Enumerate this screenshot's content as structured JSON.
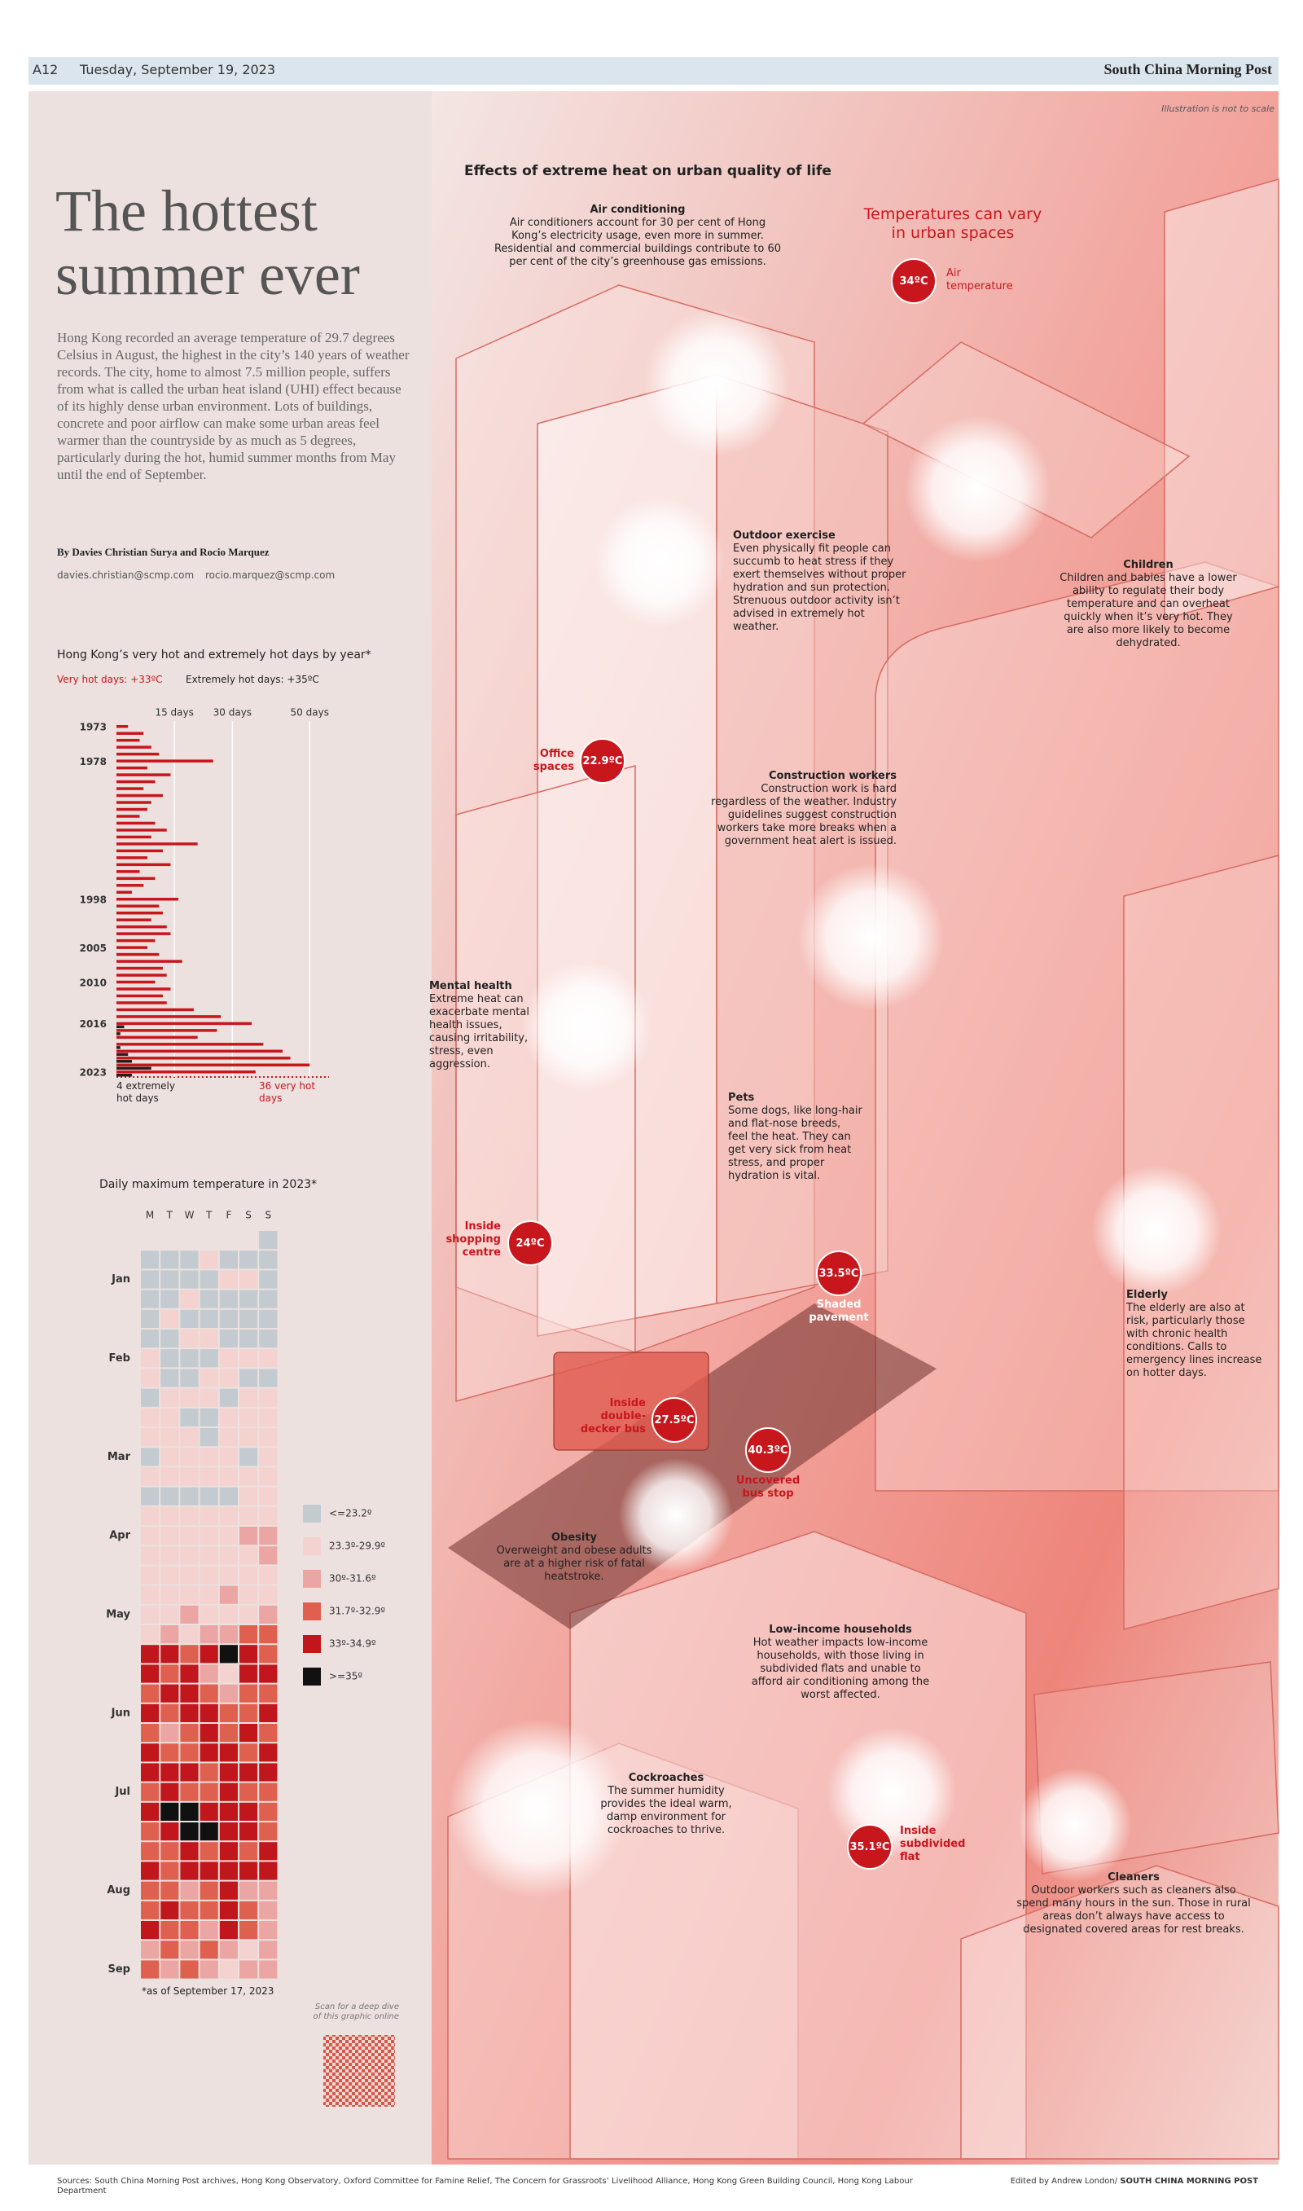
{
  "header": {
    "page": "A12",
    "date": "Tuesday, September 19, 2023",
    "masthead": "South China Morning Post"
  },
  "note": "Illustration is not to scale",
  "article": {
    "title": "The hottest summer ever",
    "intro": "Hong Kong recorded an average temperature of 29.7 degrees Celsius in August, the highest in the city’s 140 years of weather records. The city, home to almost 7.5 million people, suffers from what is called the urban heat island (UHI) effect because of its highly dense urban environment. Lots of buildings, concrete and poor airflow can make some urban areas feel warmer than the countryside by as much as 5 degrees, particularly during the hot, humid summer months from May until the end of September.",
    "byline": "By Davies Christian Surya and Rocio Marquez",
    "emails": [
      "davies.christian@scmp.com",
      "rocio.marquez@scmp.com"
    ]
  },
  "chart_data": [
    {
      "type": "bar",
      "orientation": "horizontal",
      "title": "Hong Kong’s very hot and extremely hot days by year*",
      "categories": [
        "1973",
        null,
        null,
        null,
        null,
        "1978",
        null,
        null,
        null,
        null,
        null,
        null,
        null,
        null,
        null,
        null,
        null,
        null,
        null,
        null,
        null,
        null,
        null,
        null,
        null,
        "1998",
        null,
        null,
        null,
        null,
        null,
        null,
        "2005",
        null,
        null,
        null,
        null,
        "2010",
        null,
        null,
        null,
        null,
        null,
        "2016",
        null,
        null,
        null,
        null,
        null,
        null,
        "2023"
      ],
      "series": [
        {
          "name": "Very hot days: +33ºC",
          "color": "#c8161d",
          "values": [
            3,
            7,
            6,
            9,
            11,
            25,
            8,
            14,
            10,
            7,
            12,
            9,
            8,
            6,
            10,
            13,
            9,
            21,
            12,
            8,
            14,
            6,
            10,
            7,
            4,
            16,
            11,
            12,
            9,
            13,
            14,
            10,
            8,
            11,
            17,
            12,
            13,
            10,
            14,
            12,
            13,
            20,
            27,
            35,
            26,
            21,
            38,
            43,
            45,
            50,
            36
          ]
        },
        {
          "name": "Extremely hot days: +35ºC",
          "color": "#2b1b1b",
          "values": [
            0,
            0,
            0,
            0,
            0,
            0,
            0,
            0,
            0,
            0,
            0,
            0,
            0,
            0,
            0,
            0,
            0,
            0,
            0,
            0,
            0,
            0,
            0,
            0,
            0,
            0,
            0,
            0,
            0,
            0,
            0,
            0,
            0,
            0,
            0,
            0,
            0,
            0,
            0,
            0,
            0,
            0,
            0,
            2,
            1,
            0,
            1,
            3,
            4,
            9,
            4
          ]
        }
      ],
      "xlim": [
        0,
        55
      ],
      "xticks": [
        {
          "value": 15,
          "label": "15 days"
        },
        {
          "value": 30,
          "label": "30 days"
        },
        {
          "value": 50,
          "label": "50 days"
        }
      ],
      "annotations": [
        "4 extremely hot days",
        "36 very hot days"
      ]
    },
    {
      "type": "heatmap",
      "title": "Daily maximum temperature in 2023*",
      "columns": [
        "M",
        "T",
        "W",
        "T",
        "F",
        "S",
        "S"
      ],
      "rows": [
        null,
        null,
        "Jan",
        null,
        null,
        null,
        "Feb",
        null,
        null,
        null,
        null,
        "Mar",
        null,
        null,
        null,
        "Apr",
        null,
        null,
        null,
        "May",
        null,
        null,
        null,
        null,
        "Jun",
        null,
        null,
        null,
        "Jul",
        null,
        null,
        null,
        null,
        "Aug",
        null,
        null,
        null,
        "Sep"
      ],
      "values": [
        [
          null,
          null,
          null,
          null,
          null,
          null,
          0
        ],
        [
          0,
          0,
          0,
          1,
          0,
          0,
          0
        ],
        [
          0,
          0,
          0,
          0,
          1,
          1,
          0
        ],
        [
          0,
          0,
          1,
          0,
          0,
          0,
          0
        ],
        [
          0,
          1,
          0,
          0,
          0,
          0,
          0
        ],
        [
          0,
          0,
          1,
          1,
          0,
          0,
          0
        ],
        [
          1,
          0,
          0,
          0,
          1,
          1,
          1
        ],
        [
          1,
          0,
          0,
          1,
          1,
          0,
          0
        ],
        [
          0,
          1,
          1,
          1,
          0,
          1,
          1
        ],
        [
          1,
          1,
          0,
          0,
          1,
          1,
          1
        ],
        [
          1,
          1,
          1,
          0,
          1,
          1,
          1
        ],
        [
          0,
          1,
          1,
          1,
          1,
          0,
          1
        ],
        [
          1,
          1,
          1,
          1,
          1,
          1,
          1
        ],
        [
          0,
          0,
          0,
          0,
          0,
          1,
          1
        ],
        [
          1,
          1,
          1,
          1,
          1,
          1,
          1
        ],
        [
          1,
          1,
          1,
          1,
          1,
          2,
          2
        ],
        [
          1,
          1,
          1,
          1,
          1,
          1,
          2
        ],
        [
          1,
          1,
          1,
          1,
          1,
          1,
          1
        ],
        [
          1,
          1,
          1,
          1,
          2,
          1,
          1
        ],
        [
          1,
          1,
          2,
          1,
          1,
          1,
          2
        ],
        [
          1,
          2,
          1,
          2,
          2,
          3,
          3
        ],
        [
          4,
          4,
          3,
          4,
          5,
          4,
          3
        ],
        [
          4,
          3,
          4,
          2,
          1,
          4,
          4
        ],
        [
          3,
          4,
          4,
          3,
          2,
          3,
          3
        ],
        [
          4,
          3,
          4,
          4,
          3,
          3,
          4
        ],
        [
          3,
          2,
          3,
          4,
          3,
          4,
          3
        ],
        [
          4,
          3,
          3,
          4,
          4,
          3,
          4
        ],
        [
          4,
          4,
          4,
          3,
          4,
          4,
          4
        ],
        [
          3,
          4,
          3,
          3,
          4,
          3,
          3
        ],
        [
          4,
          5,
          5,
          4,
          4,
          4,
          3
        ],
        [
          3,
          4,
          5,
          5,
          4,
          4,
          3
        ],
        [
          3,
          3,
          4,
          3,
          4,
          3,
          4
        ],
        [
          4,
          3,
          4,
          4,
          4,
          4,
          4
        ],
        [
          3,
          3,
          2,
          3,
          4,
          2,
          2
        ],
        [
          3,
          4,
          3,
          3,
          4,
          3,
          2
        ],
        [
          4,
          3,
          3,
          2,
          4,
          3,
          2
        ],
        [
          2,
          3,
          2,
          3,
          2,
          1,
          2
        ],
        [
          3,
          2,
          3,
          2,
          1,
          2,
          2
        ]
      ],
      "legend": {
        "labels": [
          "<=23.2º",
          "23.3º-29.9º",
          "30º-31.6º",
          "31.7º-32.9º",
          "33º-34.9º",
          ">=35º"
        ],
        "colors": [
          "#c3cbd0",
          "#f3d2d0",
          "#eba6a3",
          "#e0604f",
          "#c0161c",
          "#111111"
        ]
      },
      "note": "*as of September 17, 2023"
    }
  ],
  "qr_caption": "Scan for a deep dive of this graphic online",
  "illustration": {
    "title": "Effects of extreme heat on urban quality of life",
    "temperature_heading": "Temperatures can vary in urban spaces",
    "callouts": [
      {
        "value": "34ºC",
        "label": "Air temperature"
      },
      {
        "value": "22.9ºC",
        "label": "Office spaces"
      },
      {
        "value": "24ºC",
        "label": "Inside shopping centre"
      },
      {
        "value": "33.5ºC",
        "label": "Shaded pavement"
      },
      {
        "value": "27.5ºC",
        "label": "Inside double-decker bus"
      },
      {
        "value": "40.3ºC",
        "label": "Uncovered bus stop"
      },
      {
        "value": "35.1ºC",
        "label": "Inside subdivided flat"
      }
    ],
    "annotations": [
      {
        "title": "Air conditioning",
        "text": "Air conditioners account for 30 per cent of Hong Kong’s electricity usage, even more in summer. Residential and commercial buildings contribute to 60 per cent of the city’s greenhouse gas emissions."
      },
      {
        "title": "Outdoor exercise",
        "text": "Even physically fit people can succumb to heat stress if they exert themselves without proper hydration and sun protection. Strenuous outdoor activity isn’t advised in extremely hot weather."
      },
      {
        "title": "Children",
        "text": "Children and babies have a lower ability to regulate their body temperature and can overheat quickly when it’s very hot. They are also more likely to become dehydrated."
      },
      {
        "title": "Construction workers",
        "text": "Construction work is hard regardless of the weather. Industry guidelines suggest construction workers take more breaks when a government heat alert is issued."
      },
      {
        "title": "Mental health",
        "text": "Extreme heat can exacerbate mental health issues, causing irritability, stress, even aggression."
      },
      {
        "title": "Pets",
        "text": "Some dogs, like long-hair and flat-nose breeds, feel the heat. They can get very sick from heat stress, and proper hydration is vital."
      },
      {
        "title": "Elderly",
        "text": "The elderly are also at risk, particularly those with chronic health conditions. Calls to emergency lines increase on hotter days."
      },
      {
        "title": "Obesity",
        "text": "Overweight and obese adults are at a higher risk of fatal heatstroke."
      },
      {
        "title": "Low-income households",
        "text": "Hot weather impacts low-income households, with those living in subdivided flats and unable to afford air conditioning among the worst affected."
      },
      {
        "title": "Cockroaches",
        "text": "The summer humidity provides the ideal warm, damp environment for cockroaches to thrive."
      },
      {
        "title": "Cleaners",
        "text": "Outdoor workers such as cleaners also spend many hours in the sun. Those in rural areas don’t always have access to designated covered areas for rest breaks."
      }
    ]
  },
  "footer": {
    "sources": "Sources: South China Morning Post archives, Hong Kong Observatory, Oxford Committee for Famine Relief, The Concern for Grassroots’ Livelihood Alliance, Hong Kong Green Building Council, Hong Kong Labour Department",
    "editor": "Edited by Andrew London/",
    "publisher": "SOUTH CHINA MORNING POST"
  }
}
